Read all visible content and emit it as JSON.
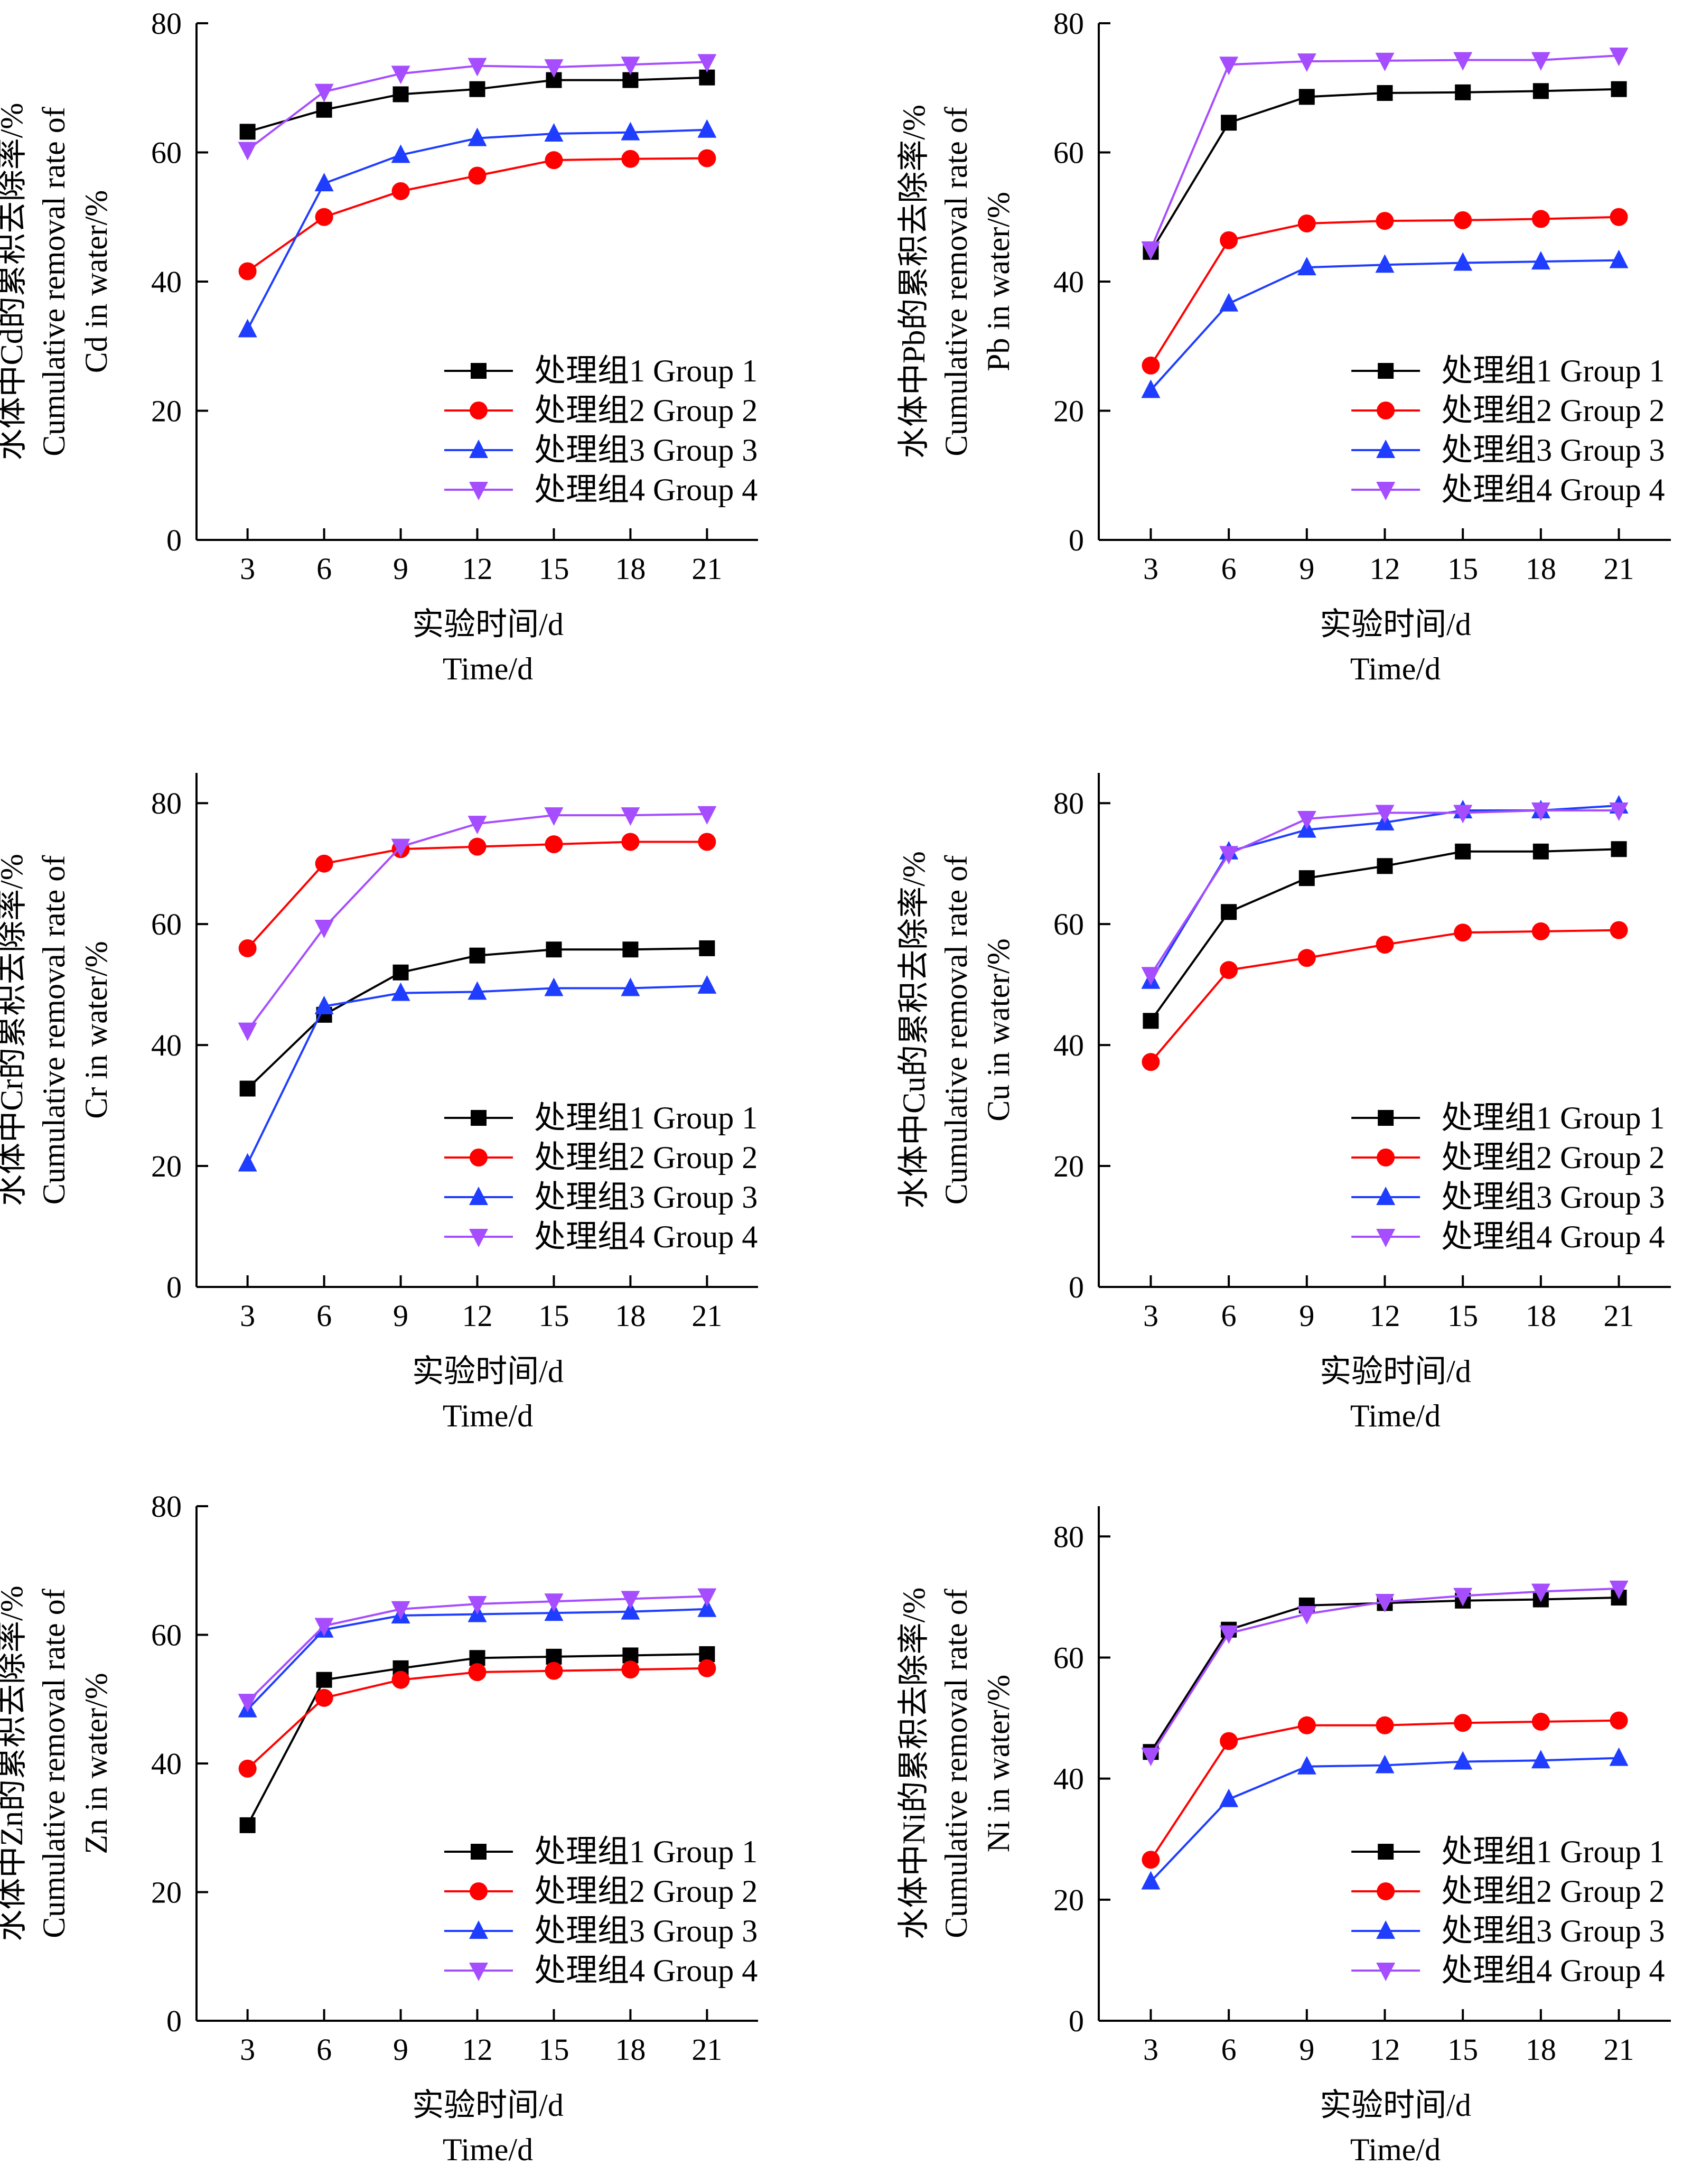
{
  "chart_data": [
    {
      "type": "line",
      "x": [
        3,
        6,
        9,
        12,
        15,
        18,
        21
      ],
      "xlim": [
        1,
        23
      ],
      "ylim": [
        0,
        80
      ],
      "xticks": [
        3,
        6,
        9,
        12,
        15,
        18,
        21
      ],
      "yticks": [
        0,
        20,
        40,
        60,
        80
      ],
      "xlabel": [
        "实验时间/d",
        "Time/d"
      ],
      "ylabel": [
        "水体中Cd的累积去除率/%",
        "Cumulative removal rate of",
        "Cd in water/%"
      ],
      "legend_position": "lower-right",
      "series": [
        {
          "name": "处理组1 Group 1",
          "values": [
            63.2,
            66.6,
            69.0,
            69.8,
            71.2,
            71.2,
            71.6
          ]
        },
        {
          "name": "处理组2 Group 2",
          "values": [
            41.6,
            50.0,
            54.0,
            56.4,
            58.8,
            59.0,
            59.1
          ]
        },
        {
          "name": "处理组3 Group 3",
          "values": [
            32.6,
            55.2,
            59.6,
            62.2,
            62.9,
            63.1,
            63.5
          ]
        },
        {
          "name": "处理组4 Group 4",
          "values": [
            60.4,
            69.4,
            72.2,
            73.4,
            73.2,
            73.6,
            74.0
          ]
        }
      ]
    },
    {
      "type": "line",
      "x": [
        3,
        6,
        9,
        12,
        15,
        18,
        21
      ],
      "xlim": [
        1,
        23
      ],
      "ylim": [
        0,
        80
      ],
      "xticks": [
        3,
        6,
        9,
        12,
        15,
        18,
        21
      ],
      "yticks": [
        0,
        20,
        40,
        60,
        80
      ],
      "xlabel": [
        "实验时间/d",
        "Time/d"
      ],
      "ylabel": [
        "水体中Pb的累积去除率/%",
        "Cumulative removal rate of",
        "Pb in water/%"
      ],
      "legend_position": "lower-right",
      "series": [
        {
          "name": "处理组1 Group 1",
          "values": [
            44.6,
            64.6,
            68.6,
            69.2,
            69.3,
            69.5,
            69.8
          ]
        },
        {
          "name": "处理组2 Group 2",
          "values": [
            27.0,
            46.4,
            49.0,
            49.4,
            49.5,
            49.7,
            50.0
          ]
        },
        {
          "name": "处理组3 Group 3",
          "values": [
            23.2,
            36.6,
            42.2,
            42.6,
            42.9,
            43.1,
            43.3
          ]
        },
        {
          "name": "处理组4 Group 4",
          "values": [
            45.0,
            73.6,
            74.1,
            74.2,
            74.3,
            74.3,
            75.0
          ]
        }
      ]
    },
    {
      "type": "line",
      "x": [
        3,
        6,
        9,
        12,
        15,
        18,
        21
      ],
      "xlim": [
        1,
        23
      ],
      "ylim": [
        0,
        85
      ],
      "xticks": [
        3,
        6,
        9,
        12,
        15,
        18,
        21
      ],
      "yticks": [
        0,
        20,
        40,
        60,
        80
      ],
      "xlabel": [
        "实验时间/d",
        "Time/d"
      ],
      "ylabel": [
        "水体中Cr的累积去除率/%",
        "Cumulative removal rate of",
        "Cr in water/%"
      ],
      "legend_position": "lower-right",
      "series": [
        {
          "name": "处理组1 Group 1",
          "values": [
            32.8,
            45.0,
            52.0,
            54.8,
            55.8,
            55.8,
            56.0
          ]
        },
        {
          "name": "处理组2 Group 2",
          "values": [
            56.0,
            70.0,
            72.4,
            72.8,
            73.2,
            73.6,
            73.6
          ]
        },
        {
          "name": "处理组3 Group 3",
          "values": [
            20.4,
            46.4,
            48.6,
            48.8,
            49.4,
            49.4,
            49.8
          ]
        },
        {
          "name": "处理组4 Group 4",
          "values": [
            42.4,
            59.4,
            72.8,
            76.6,
            78.0,
            78.0,
            78.2
          ]
        }
      ]
    },
    {
      "type": "line",
      "x": [
        3,
        6,
        9,
        12,
        15,
        18,
        21
      ],
      "xlim": [
        1,
        23
      ],
      "ylim": [
        0,
        85
      ],
      "xticks": [
        3,
        6,
        9,
        12,
        15,
        18,
        21
      ],
      "yticks": [
        0,
        20,
        40,
        60,
        80
      ],
      "xlabel": [
        "实验时间/d",
        "Time/d"
      ],
      "ylabel": [
        "水体中Cu的累积去除率/%",
        "Cumulative removal rate of",
        "Cu in water/%"
      ],
      "legend_position": "lower-right",
      "series": [
        {
          "name": "处理组1 Group 1",
          "values": [
            44.0,
            62.0,
            67.6,
            69.6,
            72.0,
            72.0,
            72.4
          ]
        },
        {
          "name": "处理组2 Group 2",
          "values": [
            37.2,
            52.4,
            54.4,
            56.6,
            58.6,
            58.8,
            59.0
          ]
        },
        {
          "name": "处理组3 Group 3",
          "values": [
            50.6,
            72.0,
            75.6,
            76.8,
            78.8,
            78.8,
            79.6
          ]
        },
        {
          "name": "处理组4 Group 4",
          "values": [
            51.6,
            71.6,
            77.4,
            78.4,
            78.4,
            78.8,
            78.8
          ]
        }
      ]
    },
    {
      "type": "line",
      "x": [
        3,
        6,
        9,
        12,
        15,
        18,
        21
      ],
      "xlim": [
        1,
        23
      ],
      "ylim": [
        0,
        80
      ],
      "xticks": [
        3,
        6,
        9,
        12,
        15,
        18,
        21
      ],
      "yticks": [
        0,
        20,
        40,
        60,
        80
      ],
      "xlabel": [
        "实验时间/d",
        "Time/d"
      ],
      "ylabel": [
        "水体中Zn的累积去除率/%",
        "Cumulative removal rate of",
        "Zn in water/%"
      ],
      "legend_position": "lower-right",
      "series": [
        {
          "name": "处理组1 Group 1",
          "values": [
            30.4,
            53.0,
            54.8,
            56.4,
            56.6,
            56.8,
            57.0
          ]
        },
        {
          "name": "处理组2 Group 2",
          "values": [
            39.2,
            50.2,
            53.0,
            54.2,
            54.4,
            54.6,
            54.8
          ]
        },
        {
          "name": "处理组3 Group 3",
          "values": [
            48.4,
            60.8,
            63.0,
            63.2,
            63.4,
            63.6,
            64.0
          ]
        },
        {
          "name": "处理组4 Group 4",
          "values": [
            49.6,
            61.4,
            64.0,
            64.8,
            65.2,
            65.6,
            66.0
          ]
        }
      ]
    },
    {
      "type": "line",
      "x": [
        3,
        6,
        9,
        12,
        15,
        18,
        21
      ],
      "xlim": [
        1,
        23
      ],
      "ylim": [
        0,
        85
      ],
      "xticks": [
        3,
        6,
        9,
        12,
        15,
        18,
        21
      ],
      "yticks": [
        0,
        20,
        40,
        60,
        80
      ],
      "xlabel": [
        "实验时间/d",
        "Time/d"
      ],
      "ylabel": [
        "水体中Ni的累积去除率/%",
        "Cumulative removal rate of",
        "Ni in water/%"
      ],
      "legend_position": "lower-right",
      "series": [
        {
          "name": "处理组1 Group 1",
          "values": [
            44.4,
            64.6,
            68.6,
            69.0,
            69.4,
            69.6,
            69.9
          ]
        },
        {
          "name": "处理组2 Group 2",
          "values": [
            26.6,
            46.2,
            48.8,
            48.8,
            49.2,
            49.4,
            49.6
          ]
        },
        {
          "name": "处理组3 Group 3",
          "values": [
            23.0,
            36.6,
            42.0,
            42.2,
            42.8,
            43.0,
            43.4
          ]
        },
        {
          "name": "处理组4 Group 4",
          "values": [
            43.8,
            64.0,
            67.2,
            69.2,
            70.2,
            70.9,
            71.4
          ]
        }
      ]
    }
  ],
  "style": {
    "series_colors": [
      "#000000",
      "#ff0000",
      "#1f3dff",
      "#a64dff"
    ],
    "series_markers": [
      "square",
      "circle",
      "triangle-up",
      "triangle-down"
    ]
  }
}
